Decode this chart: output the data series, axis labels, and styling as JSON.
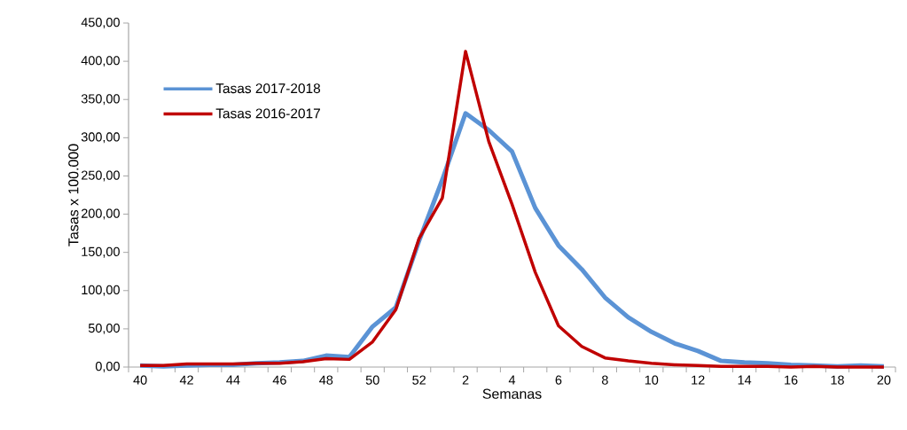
{
  "chart_data": {
    "type": "line",
    "categories": [
      "40",
      null,
      "42",
      null,
      "44",
      null,
      "46",
      null,
      "48",
      null,
      "50",
      null,
      "52",
      null,
      "2",
      null,
      "4",
      null,
      "6",
      null,
      "8",
      null,
      "10",
      null,
      "12",
      null,
      "14",
      null,
      "16",
      null,
      "18",
      null,
      "20"
    ],
    "series": [
      {
        "name": "Tasas 2017-2018",
        "color": "#5b93d5",
        "values": [
          2,
          1,
          2,
          3,
          3,
          5,
          6,
          8,
          15,
          13,
          53,
          78,
          165,
          245,
          332,
          310,
          282,
          208,
          159,
          128,
          91,
          65,
          46,
          31,
          21,
          8,
          6,
          5,
          3,
          2,
          1,
          2,
          1
        ]
      },
      {
        "name": "Tasas 2016-2017",
        "color": "#c00000",
        "values": [
          2,
          2,
          4,
          4,
          4,
          5,
          5,
          7,
          11,
          10,
          33,
          75,
          168,
          221,
          413,
          295,
          213,
          124,
          54,
          27,
          12,
          8,
          5,
          3,
          2,
          1,
          1,
          1,
          0,
          1,
          0,
          0,
          0
        ]
      }
    ],
    "xlabel": "Semanas",
    "ylabel": "Tasas x 100.000",
    "ylim": [
      0,
      450
    ],
    "yticks": [
      {
        "value": 0,
        "label": "0,00"
      },
      {
        "value": 50,
        "label": "50,00"
      },
      {
        "value": 100,
        "label": "100,00"
      },
      {
        "value": 150,
        "label": "150,00"
      },
      {
        "value": 200,
        "label": "200,00"
      },
      {
        "value": 250,
        "label": "250,00"
      },
      {
        "value": 300,
        "label": "300,00"
      },
      {
        "value": 350,
        "label": "350,00"
      },
      {
        "value": 400,
        "label": "400,00"
      },
      {
        "value": 450,
        "label": "450,00"
      }
    ],
    "legend": "top left",
    "marker": "none",
    "line_style": "solid"
  }
}
